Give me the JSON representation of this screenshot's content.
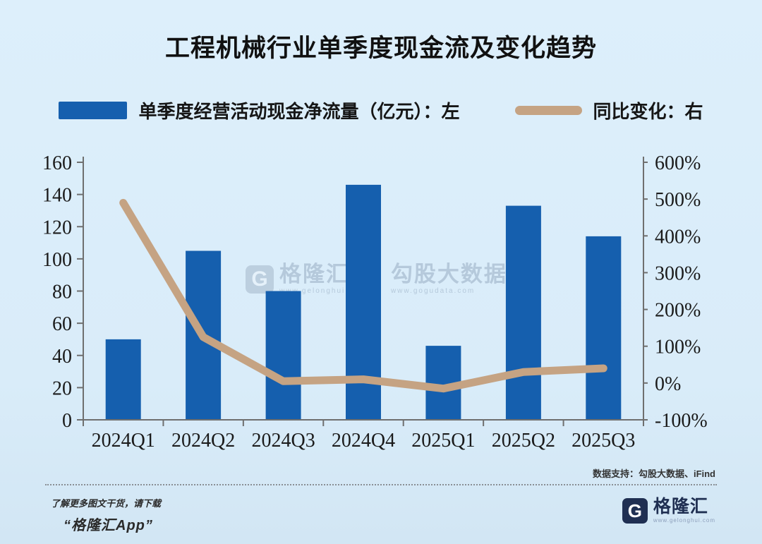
{
  "title": "工程机械行业单季度现金流及变化趋势",
  "legend": {
    "bar_label": "单季度经营活动现金净流量（亿元）：左",
    "line_label": "同比变化：右"
  },
  "chart_data": {
    "type": "bar+line combo (dual axis)",
    "categories": [
      "2024Q1",
      "2024Q2",
      "2024Q3",
      "2024Q4",
      "2025Q1",
      "2025Q2",
      "2025Q3"
    ],
    "series": [
      {
        "name": "单季度经营活动现金净流量（亿元）",
        "type": "bar",
        "axis": "left",
        "values": [
          50,
          105,
          80,
          146,
          46,
          133,
          114
        ]
      },
      {
        "name": "同比变化",
        "type": "line",
        "axis": "right",
        "unit": "%",
        "values": [
          490,
          125,
          5,
          10,
          -15,
          30,
          40
        ]
      }
    ],
    "left_axis": {
      "min": 0,
      "max": 160,
      "tick_step": 20,
      "tick_labels": [
        "0",
        "20",
        "40",
        "60",
        "80",
        "100",
        "120",
        "140",
        "160"
      ]
    },
    "right_axis": {
      "min": -100,
      "max": 600,
      "tick_step": 100,
      "tick_labels": [
        "-100%",
        "0%",
        "100%",
        "200%",
        "300%",
        "400%",
        "500%",
        "600%"
      ]
    },
    "grid": false,
    "legend_position": "top"
  },
  "colors": {
    "bar": "#155fae",
    "line": "#c5a383",
    "background": "#d9ecf9",
    "axis": "#6f6f6f",
    "text": "#1b1b1b",
    "logo_navy": "#1f2f52",
    "watermark": "#a9bdd1"
  },
  "watermark": {
    "g": "G",
    "brand": "格隆汇",
    "brand_sub": "www.gelonghui.com",
    "partner": "勾股大数据",
    "partner_sub": "www.gogudata.com"
  },
  "footer": {
    "source": "数据支持：勾股大数据、iFind",
    "promo_line1": "了解更多图文干货，请下载",
    "promo_line2": "“格隆汇App”",
    "logo_g": "G",
    "logo_text": "格隆汇",
    "logo_sub": "www.gelonghui.com"
  }
}
